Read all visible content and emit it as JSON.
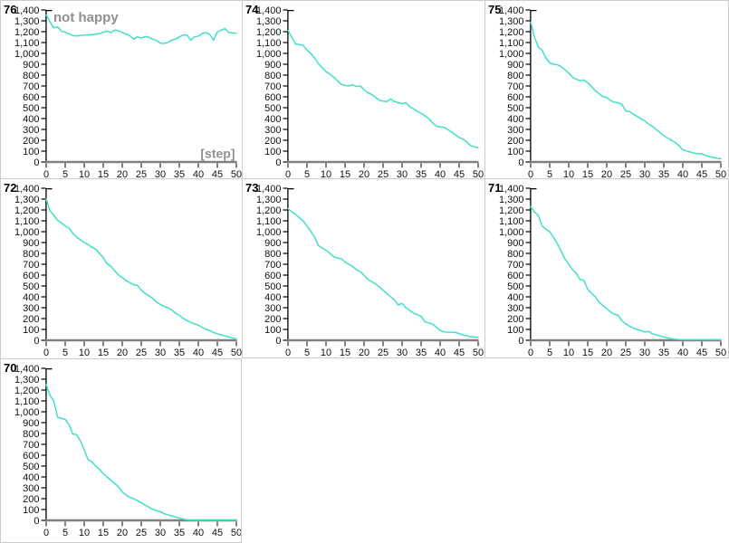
{
  "ui": {
    "background_color": "#ffffff",
    "cell_border_color": "#cccccc",
    "line_color": "#40e0c8",
    "y_axis_color": "#000000",
    "x_axis_line_color": "#808080",
    "tick_mark_color": "#2b2b2b",
    "tick_label_color": "#111111",
    "id_label_color": "#000000",
    "annotation_color": "#909090"
  },
  "chart_defaults": {
    "type": "line",
    "xlim": [
      0,
      50
    ],
    "ylim": [
      0,
      1400
    ],
    "grid": false,
    "x_ticks": [
      "0",
      "5",
      "10",
      "15",
      "20",
      "25",
      "30",
      "35",
      "40",
      "45",
      "50"
    ],
    "y_tick_labels": [
      "0",
      "100",
      "200",
      "300",
      "400",
      "500",
      "600",
      "700",
      "800",
      "900",
      "1,000",
      "1,100",
      "1,200",
      "1,300",
      "1,400"
    ],
    "x_step": 1
  },
  "chart_data": [
    {
      "id_label": "76",
      "annotation": "not happy",
      "x_axis_label": "[step]",
      "row": 1,
      "col": 1,
      "values": [
        1355,
        1290,
        1235,
        1245,
        1205,
        1195,
        1180,
        1165,
        1160,
        1165,
        1168,
        1170,
        1172,
        1178,
        1182,
        1195,
        1205,
        1192,
        1215,
        1208,
        1192,
        1180,
        1162,
        1132,
        1152,
        1142,
        1155,
        1148,
        1132,
        1118,
        1095,
        1092,
        1102,
        1122,
        1132,
        1152,
        1168,
        1170,
        1122,
        1152,
        1158,
        1182,
        1192,
        1175,
        1122,
        1198,
        1212,
        1228,
        1192,
        1188,
        1186
      ]
    },
    {
      "id_label": "74",
      "annotation": "",
      "x_axis_label": "",
      "row": 1,
      "col": 2,
      "values": [
        1210,
        1150,
        1085,
        1082,
        1075,
        1030,
        1000,
        958,
        905,
        868,
        832,
        810,
        782,
        748,
        715,
        705,
        700,
        712,
        695,
        702,
        665,
        640,
        622,
        596,
        570,
        560,
        556,
        582,
        556,
        546,
        536,
        546,
        510,
        490,
        466,
        450,
        425,
        400,
        360,
        330,
        322,
        320,
        300,
        276,
        250,
        226,
        210,
        186,
        152,
        140,
        130
      ]
    },
    {
      "id_label": "75",
      "annotation": "",
      "x_axis_label": "",
      "row": 1,
      "col": 3,
      "values": [
        1290,
        1150,
        1060,
        1028,
        958,
        912,
        900,
        896,
        878,
        850,
        818,
        780,
        762,
        748,
        755,
        728,
        695,
        655,
        630,
        600,
        594,
        565,
        550,
        545,
        530,
        470,
        464,
        440,
        420,
        398,
        378,
        350,
        328,
        300,
        270,
        242,
        220,
        200,
        180,
        150,
        112,
        102,
        92,
        82,
        76,
        76,
        60,
        50,
        42,
        36,
        30
      ]
    },
    {
      "id_label": "72",
      "annotation": "",
      "x_axis_label": "",
      "row": 2,
      "col": 1,
      "values": [
        1300,
        1192,
        1150,
        1105,
        1082,
        1052,
        1035,
        985,
        950,
        925,
        900,
        882,
        856,
        840,
        800,
        762,
        706,
        682,
        640,
        602,
        578,
        550,
        530,
        512,
        506,
        462,
        432,
        410,
        386,
        352,
        330,
        312,
        300,
        280,
        250,
        230,
        202,
        182,
        165,
        152,
        140,
        120,
        100,
        90,
        72,
        60,
        50,
        40,
        30,
        22,
        12
      ]
    },
    {
      "id_label": "73",
      "annotation": "",
      "x_axis_label": "",
      "row": 2,
      "col": 2,
      "values": [
        1212,
        1182,
        1160,
        1130,
        1100,
        1052,
        1002,
        950,
        872,
        850,
        830,
        802,
        772,
        756,
        752,
        722,
        700,
        680,
        650,
        630,
        600,
        562,
        540,
        520,
        492,
        462,
        430,
        402,
        370,
        325,
        340,
        300,
        275,
        250,
        235,
        222,
        170,
        160,
        150,
        120,
        90,
        78,
        75,
        74,
        72,
        62,
        48,
        40,
        33,
        30,
        28
      ]
    },
    {
      "id_label": "71",
      "annotation": "",
      "x_axis_label": "",
      "row": 2,
      "col": 3,
      "values": [
        1230,
        1182,
        1150,
        1055,
        1022,
        1000,
        950,
        890,
        820,
        750,
        700,
        650,
        615,
        560,
        550,
        470,
        432,
        400,
        350,
        320,
        290,
        262,
        238,
        230,
        180,
        152,
        130,
        112,
        100,
        90,
        76,
        82,
        60,
        50,
        40,
        30,
        22,
        15,
        10,
        6,
        5,
        5,
        5,
        5,
        5,
        5,
        5,
        5,
        5,
        5,
        5
      ]
    },
    {
      "id_label": "70",
      "annotation": "",
      "x_axis_label": "",
      "row": 3,
      "col": 1,
      "values": [
        1250,
        1152,
        1100,
        950,
        938,
        930,
        882,
        795,
        790,
        732,
        650,
        560,
        540,
        500,
        470,
        432,
        400,
        370,
        340,
        310,
        262,
        232,
        212,
        200,
        182,
        162,
        140,
        122,
        102,
        92,
        80,
        62,
        52,
        42,
        32,
        22,
        12,
        6,
        2,
        2,
        2,
        2,
        2,
        2,
        2,
        2,
        2,
        2,
        2,
        2,
        2
      ]
    }
  ]
}
